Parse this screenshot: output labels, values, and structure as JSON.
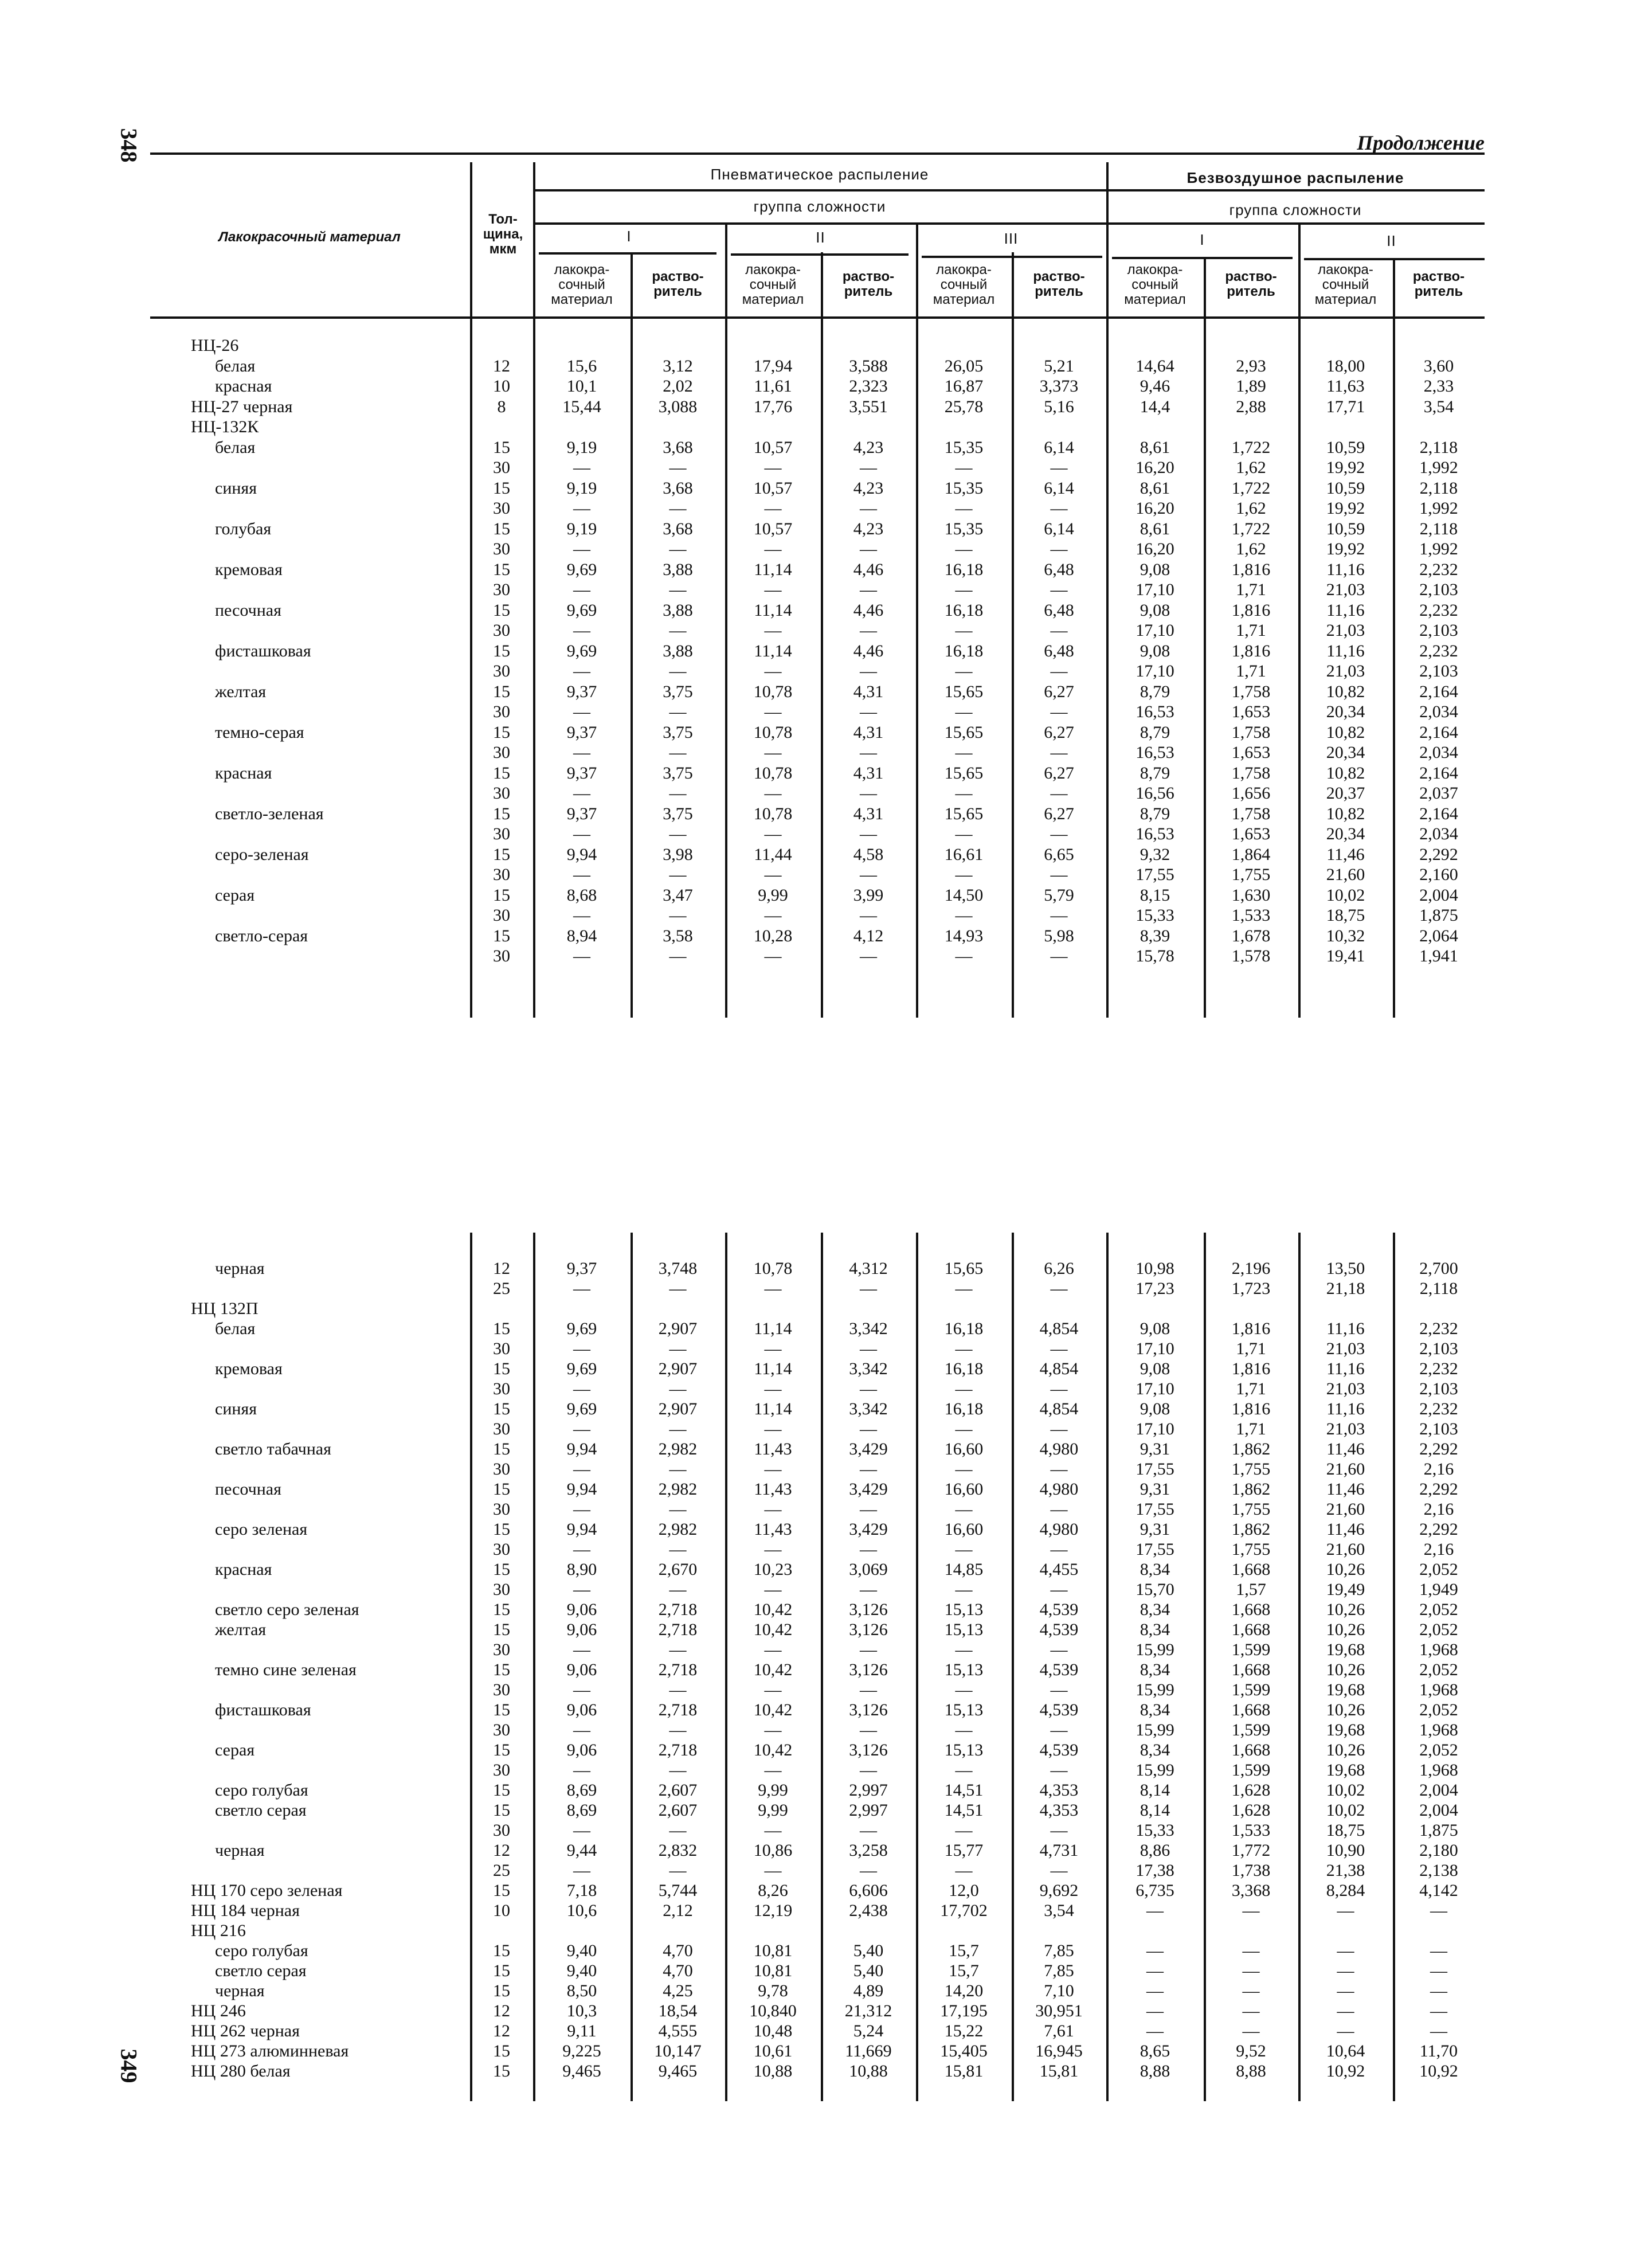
{
  "page_numbers": {
    "left": "348",
    "right": "349"
  },
  "continuation": "Продолжение",
  "header": {
    "material": "Лакокрасочный материал",
    "thickness": [
      "Тол-",
      "щина,",
      "мкм"
    ],
    "pneumatic": "Пневматическое распыление",
    "airless": "Безвоздушное распыление",
    "group": "группа сложности",
    "groups_pneumatic": [
      "I",
      "II",
      "III"
    ],
    "groups_airless": [
      "I",
      "II"
    ],
    "paint_label": [
      "лакокра-",
      "сочный",
      "материал"
    ],
    "solvent_label": [
      "раство-",
      "ритель"
    ]
  },
  "top": {
    "rows": [
      {
        "n": "НЦ-26",
        "g": 1,
        "t": "",
        "v": []
      },
      {
        "n": "белая",
        "g": 0,
        "t": "12",
        "v": [
          "15,6",
          "3,12",
          "17,94",
          "3,588",
          "26,05",
          "5,21",
          "14,64",
          "2,93",
          "18,00",
          "3,60"
        ]
      },
      {
        "n": "красная",
        "g": 0,
        "t": "10",
        "v": [
          "10,1",
          "2,02",
          "11,61",
          "2,323",
          "16,87",
          "3,373",
          "9,46",
          "1,89",
          "11,63",
          "2,33"
        ]
      },
      {
        "n": "НЦ-27 черная",
        "g": 1,
        "t": "8",
        "v": [
          "15,44",
          "3,088",
          "17,76",
          "3,551",
          "25,78",
          "5,16",
          "14,4",
          "2,88",
          "17,71",
          "3,54"
        ]
      },
      {
        "n": "НЦ-132К",
        "g": 1,
        "t": "",
        "v": []
      },
      {
        "n": "белая",
        "g": 0,
        "t": "15",
        "v": [
          "9,19",
          "3,68",
          "10,57",
          "4,23",
          "15,35",
          "6,14",
          "8,61",
          "1,722",
          "10,59",
          "2,118"
        ]
      },
      {
        "n": "",
        "g": 0,
        "t": "30",
        "v": [
          "—",
          "—",
          "—",
          "—",
          "—",
          "—",
          "16,20",
          "1,62",
          "19,92",
          "1,992"
        ]
      },
      {
        "n": "синяя",
        "g": 0,
        "t": "15",
        "v": [
          "9,19",
          "3,68",
          "10,57",
          "4,23",
          "15,35",
          "6,14",
          "8,61",
          "1,722",
          "10,59",
          "2,118"
        ]
      },
      {
        "n": "",
        "g": 0,
        "t": "30",
        "v": [
          "—",
          "—",
          "—",
          "—",
          "—",
          "—",
          "16,20",
          "1,62",
          "19,92",
          "1,992"
        ]
      },
      {
        "n": "голубая",
        "g": 0,
        "t": "15",
        "v": [
          "9,19",
          "3,68",
          "10,57",
          "4,23",
          "15,35",
          "6,14",
          "8,61",
          "1,722",
          "10,59",
          "2,118"
        ]
      },
      {
        "n": "",
        "g": 0,
        "t": "30",
        "v": [
          "—",
          "—",
          "—",
          "—",
          "—",
          "—",
          "16,20",
          "1,62",
          "19,92",
          "1,992"
        ]
      },
      {
        "n": "кремовая",
        "g": 0,
        "t": "15",
        "v": [
          "9,69",
          "3,88",
          "11,14",
          "4,46",
          "16,18",
          "6,48",
          "9,08",
          "1,816",
          "11,16",
          "2,232"
        ]
      },
      {
        "n": "",
        "g": 0,
        "t": "30",
        "v": [
          "—",
          "—",
          "—",
          "—",
          "—",
          "—",
          "17,10",
          "1,71",
          "21,03",
          "2,103"
        ]
      },
      {
        "n": "песочная",
        "g": 0,
        "t": "15",
        "v": [
          "9,69",
          "3,88",
          "11,14",
          "4,46",
          "16,18",
          "6,48",
          "9,08",
          "1,816",
          "11,16",
          "2,232"
        ]
      },
      {
        "n": "",
        "g": 0,
        "t": "30",
        "v": [
          "—",
          "—",
          "—",
          "—",
          "—",
          "—",
          "17,10",
          "1,71",
          "21,03",
          "2,103"
        ]
      },
      {
        "n": "фисташковая",
        "g": 0,
        "t": "15",
        "v": [
          "9,69",
          "3,88",
          "11,14",
          "4,46",
          "16,18",
          "6,48",
          "9,08",
          "1,816",
          "11,16",
          "2,232"
        ]
      },
      {
        "n": "",
        "g": 0,
        "t": "30",
        "v": [
          "—",
          "—",
          "—",
          "—",
          "—",
          "—",
          "17,10",
          "1,71",
          "21,03",
          "2,103"
        ]
      },
      {
        "n": "желтая",
        "g": 0,
        "t": "15",
        "v": [
          "9,37",
          "3,75",
          "10,78",
          "4,31",
          "15,65",
          "6,27",
          "8,79",
          "1,758",
          "10,82",
          "2,164"
        ]
      },
      {
        "n": "",
        "g": 0,
        "t": "30",
        "v": [
          "—",
          "—",
          "—",
          "—",
          "—",
          "—",
          "16,53",
          "1,653",
          "20,34",
          "2,034"
        ]
      },
      {
        "n": "темно-серая",
        "g": 0,
        "t": "15",
        "v": [
          "9,37",
          "3,75",
          "10,78",
          "4,31",
          "15,65",
          "6,27",
          "8,79",
          "1,758",
          "10,82",
          "2,164"
        ]
      },
      {
        "n": "",
        "g": 0,
        "t": "30",
        "v": [
          "—",
          "—",
          "—",
          "—",
          "—",
          "—",
          "16,53",
          "1,653",
          "20,34",
          "2,034"
        ]
      },
      {
        "n": "красная",
        "g": 0,
        "t": "15",
        "v": [
          "9,37",
          "3,75",
          "10,78",
          "4,31",
          "15,65",
          "6,27",
          "8,79",
          "1,758",
          "10,82",
          "2,164"
        ]
      },
      {
        "n": "",
        "g": 0,
        "t": "30",
        "v": [
          "—",
          "—",
          "—",
          "—",
          "—",
          "—",
          "16,56",
          "1,656",
          "20,37",
          "2,037"
        ]
      },
      {
        "n": "светло-зеленая",
        "g": 0,
        "t": "15",
        "v": [
          "9,37",
          "3,75",
          "10,78",
          "4,31",
          "15,65",
          "6,27",
          "8,79",
          "1,758",
          "10,82",
          "2,164"
        ]
      },
      {
        "n": "",
        "g": 0,
        "t": "30",
        "v": [
          "—",
          "—",
          "—",
          "—",
          "—",
          "—",
          "16,53",
          "1,653",
          "20,34",
          "2,034"
        ]
      },
      {
        "n": "серо-зеленая",
        "g": 0,
        "t": "15",
        "v": [
          "9,94",
          "3,98",
          "11,44",
          "4,58",
          "16,61",
          "6,65",
          "9,32",
          "1,864",
          "11,46",
          "2,292"
        ]
      },
      {
        "n": "",
        "g": 0,
        "t": "30",
        "v": [
          "—",
          "—",
          "—",
          "—",
          "—",
          "—",
          "17,55",
          "1,755",
          "21,60",
          "2,160"
        ]
      },
      {
        "n": "серая",
        "g": 0,
        "t": "15",
        "v": [
          "8,68",
          "3,47",
          "9,99",
          "3,99",
          "14,50",
          "5,79",
          "8,15",
          "1,630",
          "10,02",
          "2,004"
        ]
      },
      {
        "n": "",
        "g": 0,
        "t": "30",
        "v": [
          "—",
          "—",
          "—",
          "—",
          "—",
          "—",
          "15,33",
          "1,533",
          "18,75",
          "1,875"
        ]
      },
      {
        "n": "светло-серая",
        "g": 0,
        "t": "15",
        "v": [
          "8,94",
          "3,58",
          "10,28",
          "4,12",
          "14,93",
          "5,98",
          "8,39",
          "1,678",
          "10,32",
          "2,064"
        ]
      },
      {
        "n": "",
        "g": 0,
        "t": "30",
        "v": [
          "—",
          "—",
          "—",
          "—",
          "—",
          "—",
          "15,78",
          "1,578",
          "19,41",
          "1,941"
        ]
      }
    ]
  },
  "bottom": {
    "rows": [
      {
        "n": "черная",
        "g": 0,
        "t": "12",
        "v": [
          "9,37",
          "3,748",
          "10,78",
          "4,312",
          "15,65",
          "6,26",
          "10,98",
          "2,196",
          "13,50",
          "2,700"
        ]
      },
      {
        "n": "",
        "g": 0,
        "t": "25",
        "v": [
          "—",
          "—",
          "—",
          "—",
          "—",
          "—",
          "17,23",
          "1,723",
          "21,18",
          "2,118"
        ]
      },
      {
        "n": "НЦ 132П",
        "g": 1,
        "t": "",
        "v": []
      },
      {
        "n": "белая",
        "g": 0,
        "t": "15",
        "v": [
          "9,69",
          "2,907",
          "11,14",
          "3,342",
          "16,18",
          "4,854",
          "9,08",
          "1,816",
          "11,16",
          "2,232"
        ]
      },
      {
        "n": "",
        "g": 0,
        "t": "30",
        "v": [
          "—",
          "—",
          "—",
          "—",
          "—",
          "—",
          "17,10",
          "1,71",
          "21,03",
          "2,103"
        ]
      },
      {
        "n": "кремовая",
        "g": 0,
        "t": "15",
        "v": [
          "9,69",
          "2,907",
          "11,14",
          "3,342",
          "16,18",
          "4,854",
          "9,08",
          "1,816",
          "11,16",
          "2,232"
        ]
      },
      {
        "n": "",
        "g": 0,
        "t": "30",
        "v": [
          "—",
          "—",
          "—",
          "—",
          "—",
          "—",
          "17,10",
          "1,71",
          "21,03",
          "2,103"
        ]
      },
      {
        "n": "синяя",
        "g": 0,
        "t": "15",
        "v": [
          "9,69",
          "2,907",
          "11,14",
          "3,342",
          "16,18",
          "4,854",
          "9,08",
          "1,816",
          "11,16",
          "2,232"
        ]
      },
      {
        "n": "",
        "g": 0,
        "t": "30",
        "v": [
          "—",
          "—",
          "—",
          "—",
          "—",
          "—",
          "17,10",
          "1,71",
          "21,03",
          "2,103"
        ]
      },
      {
        "n": "светло табачная",
        "g": 0,
        "t": "15",
        "v": [
          "9,94",
          "2,982",
          "11,43",
          "3,429",
          "16,60",
          "4,980",
          "9,31",
          "1,862",
          "11,46",
          "2,292"
        ]
      },
      {
        "n": "",
        "g": 0,
        "t": "30",
        "v": [
          "—",
          "—",
          "—",
          "—",
          "—",
          "—",
          "17,55",
          "1,755",
          "21,60",
          "2,16"
        ]
      },
      {
        "n": "песочная",
        "g": 0,
        "t": "15",
        "v": [
          "9,94",
          "2,982",
          "11,43",
          "3,429",
          "16,60",
          "4,980",
          "9,31",
          "1,862",
          "11,46",
          "2,292"
        ]
      },
      {
        "n": "",
        "g": 0,
        "t": "30",
        "v": [
          "—",
          "—",
          "—",
          "—",
          "—",
          "—",
          "17,55",
          "1,755",
          "21,60",
          "2,16"
        ]
      },
      {
        "n": "серо зеленая",
        "g": 0,
        "t": "15",
        "v": [
          "9,94",
          "2,982",
          "11,43",
          "3,429",
          "16,60",
          "4,980",
          "9,31",
          "1,862",
          "11,46",
          "2,292"
        ]
      },
      {
        "n": "",
        "g": 0,
        "t": "30",
        "v": [
          "—",
          "—",
          "—",
          "—",
          "—",
          "—",
          "17,55",
          "1,755",
          "21,60",
          "2,16"
        ]
      },
      {
        "n": "красная",
        "g": 0,
        "t": "15",
        "v": [
          "8,90",
          "2,670",
          "10,23",
          "3,069",
          "14,85",
          "4,455",
          "8,34",
          "1,668",
          "10,26",
          "2,052"
        ]
      },
      {
        "n": "",
        "g": 0,
        "t": "30",
        "v": [
          "—",
          "—",
          "—",
          "—",
          "—",
          "—",
          "15,70",
          "1,57",
          "19,49",
          "1,949"
        ]
      },
      {
        "n": "светло серо зеленая",
        "g": 0,
        "t": "15",
        "v": [
          "9,06",
          "2,718",
          "10,42",
          "3,126",
          "15,13",
          "4,539",
          "8,34",
          "1,668",
          "10,26",
          "2,052"
        ]
      },
      {
        "n": "желтая",
        "g": 0,
        "t": "15",
        "v": [
          "9,06",
          "2,718",
          "10,42",
          "3,126",
          "15,13",
          "4,539",
          "8,34",
          "1,668",
          "10,26",
          "2,052"
        ]
      },
      {
        "n": "",
        "g": 0,
        "t": "30",
        "v": [
          "—",
          "—",
          "—",
          "—",
          "—",
          "—",
          "15,99",
          "1,599",
          "19,68",
          "1,968"
        ]
      },
      {
        "n": "темно сине зеленая",
        "g": 0,
        "t": "15",
        "v": [
          "9,06",
          "2,718",
          "10,42",
          "3,126",
          "15,13",
          "4,539",
          "8,34",
          "1,668",
          "10,26",
          "2,052"
        ]
      },
      {
        "n": "",
        "g": 0,
        "t": "30",
        "v": [
          "—",
          "—",
          "—",
          "—",
          "—",
          "—",
          "15,99",
          "1,599",
          "19,68",
          "1,968"
        ]
      },
      {
        "n": "фисташковая",
        "g": 0,
        "t": "15",
        "v": [
          "9,06",
          "2,718",
          "10,42",
          "3,126",
          "15,13",
          "4,539",
          "8,34",
          "1,668",
          "10,26",
          "2,052"
        ]
      },
      {
        "n": "",
        "g": 0,
        "t": "30",
        "v": [
          "—",
          "—",
          "—",
          "—",
          "—",
          "—",
          "15,99",
          "1,599",
          "19,68",
          "1,968"
        ]
      },
      {
        "n": "серая",
        "g": 0,
        "t": "15",
        "v": [
          "9,06",
          "2,718",
          "10,42",
          "3,126",
          "15,13",
          "4,539",
          "8,34",
          "1,668",
          "10,26",
          "2,052"
        ]
      },
      {
        "n": "",
        "g": 0,
        "t": "30",
        "v": [
          "—",
          "—",
          "—",
          "—",
          "—",
          "—",
          "15,99",
          "1,599",
          "19,68",
          "1,968"
        ]
      },
      {
        "n": "серо голубая",
        "g": 0,
        "t": "15",
        "v": [
          "8,69",
          "2,607",
          "9,99",
          "2,997",
          "14,51",
          "4,353",
          "8,14",
          "1,628",
          "10,02",
          "2,004"
        ]
      },
      {
        "n": "светло серая",
        "g": 0,
        "t": "15",
        "v": [
          "8,69",
          "2,607",
          "9,99",
          "2,997",
          "14,51",
          "4,353",
          "8,14",
          "1,628",
          "10,02",
          "2,004"
        ]
      },
      {
        "n": "",
        "g": 0,
        "t": "30",
        "v": [
          "—",
          "—",
          "—",
          "—",
          "—",
          "—",
          "15,33",
          "1,533",
          "18,75",
          "1,875"
        ]
      },
      {
        "n": "черная",
        "g": 0,
        "t": "12",
        "v": [
          "9,44",
          "2,832",
          "10,86",
          "3,258",
          "15,77",
          "4,731",
          "8,86",
          "1,772",
          "10,90",
          "2,180"
        ]
      },
      {
        "n": "",
        "g": 0,
        "t": "25",
        "v": [
          "—",
          "—",
          "—",
          "—",
          "—",
          "—",
          "17,38",
          "1,738",
          "21,38",
          "2,138"
        ]
      },
      {
        "n": "НЦ 170 серо зеленая",
        "g": 1,
        "t": "15",
        "v": [
          "7,18",
          "5,744",
          "8,26",
          "6,606",
          "12,0",
          "9,692",
          "6,735",
          "3,368",
          "8,284",
          "4,142"
        ]
      },
      {
        "n": "НЦ 184 черная",
        "g": 1,
        "t": "10",
        "v": [
          "10,6",
          "2,12",
          "12,19",
          "2,438",
          "17,702",
          "3,54",
          "—",
          "—",
          "—",
          "—"
        ]
      },
      {
        "n": "НЦ 216",
        "g": 1,
        "t": "",
        "v": []
      },
      {
        "n": "серо голубая",
        "g": 0,
        "t": "15",
        "v": [
          "9,40",
          "4,70",
          "10,81",
          "5,40",
          "15,7",
          "7,85",
          "—",
          "—",
          "—",
          "—"
        ]
      },
      {
        "n": "светло серая",
        "g": 0,
        "t": "15",
        "v": [
          "9,40",
          "4,70",
          "10,81",
          "5,40",
          "15,7",
          "7,85",
          "—",
          "—",
          "—",
          "—"
        ]
      },
      {
        "n": "черная",
        "g": 0,
        "t": "15",
        "v": [
          "8,50",
          "4,25",
          "9,78",
          "4,89",
          "14,20",
          "7,10",
          "—",
          "—",
          "—",
          "—"
        ]
      },
      {
        "n": "НЦ 246",
        "g": 1,
        "t": "12",
        "v": [
          "10,3",
          "18,54",
          "10,840",
          "21,312",
          "17,195",
          "30,951",
          "—",
          "—",
          "—",
          "—"
        ]
      },
      {
        "n": "НЦ 262 черная",
        "g": 1,
        "t": "12",
        "v": [
          "9,11",
          "4,555",
          "10,48",
          "5,24",
          "15,22",
          "7,61",
          "—",
          "—",
          "—",
          "—"
        ]
      },
      {
        "n": "НЦ 273 алюминневая",
        "g": 1,
        "t": "15",
        "v": [
          "9,225",
          "10,147",
          "10,61",
          "11,669",
          "15,405",
          "16,945",
          "8,65",
          "9,52",
          "10,64",
          "11,70"
        ]
      },
      {
        "n": "НЦ 280 белая",
        "g": 1,
        "t": "15",
        "v": [
          "9,465",
          "9,465",
          "10,88",
          "10,88",
          "15,81",
          "15,81",
          "8,88",
          "8,88",
          "10,92",
          "10,92"
        ]
      }
    ]
  }
}
